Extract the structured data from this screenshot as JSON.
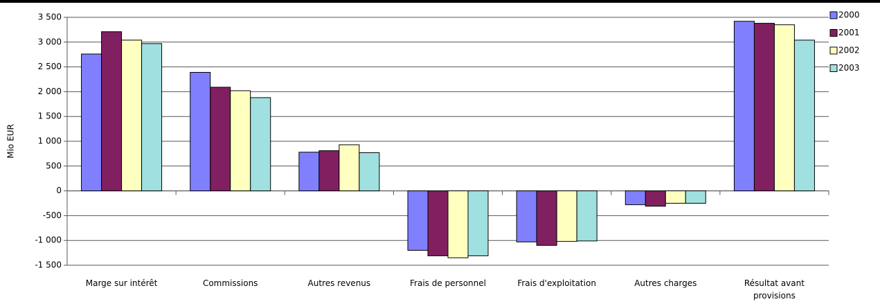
{
  "chart_data": {
    "type": "bar",
    "y_label": "Mio EUR",
    "categories": [
      "Marge sur intérêt",
      "Commissions",
      "Autres revenus",
      "Frais de personnel",
      "Frais d'exploitation",
      "Autres charges",
      "Résultat avant provisions"
    ],
    "series": [
      {
        "name": "2000",
        "color": "#8080ff",
        "values": [
          2760,
          2390,
          780,
          -1200,
          -1030,
          -280,
          3420
        ]
      },
      {
        "name": "2001",
        "color": "#802060",
        "values": [
          3210,
          2090,
          810,
          -1310,
          -1100,
          -310,
          3380
        ]
      },
      {
        "name": "2002",
        "color": "#ffffc0",
        "values": [
          3040,
          2020,
          930,
          -1350,
          -1020,
          -250,
          3350
        ]
      },
      {
        "name": "2003",
        "color": "#a0e0e0",
        "values": [
          2970,
          1880,
          770,
          -1310,
          -1010,
          -250,
          3040
        ]
      }
    ],
    "ylim": [
      -1500,
      3500
    ],
    "yticks": [
      {
        "value": -1500,
        "label": "-1 500"
      },
      {
        "value": -1000,
        "label": "-1 000"
      },
      -500,
      0,
      500,
      {
        "value": 1000,
        "label": "1 000"
      },
      {
        "value": 1500,
        "label": "1 500"
      },
      {
        "value": 2000,
        "label": "2 000"
      },
      {
        "value": 2500,
        "label": "2 500"
      },
      {
        "value": 3000,
        "label": "3 000"
      },
      {
        "value": 3500,
        "label": "3 500"
      }
    ],
    "grid": true,
    "legend": "right"
  }
}
